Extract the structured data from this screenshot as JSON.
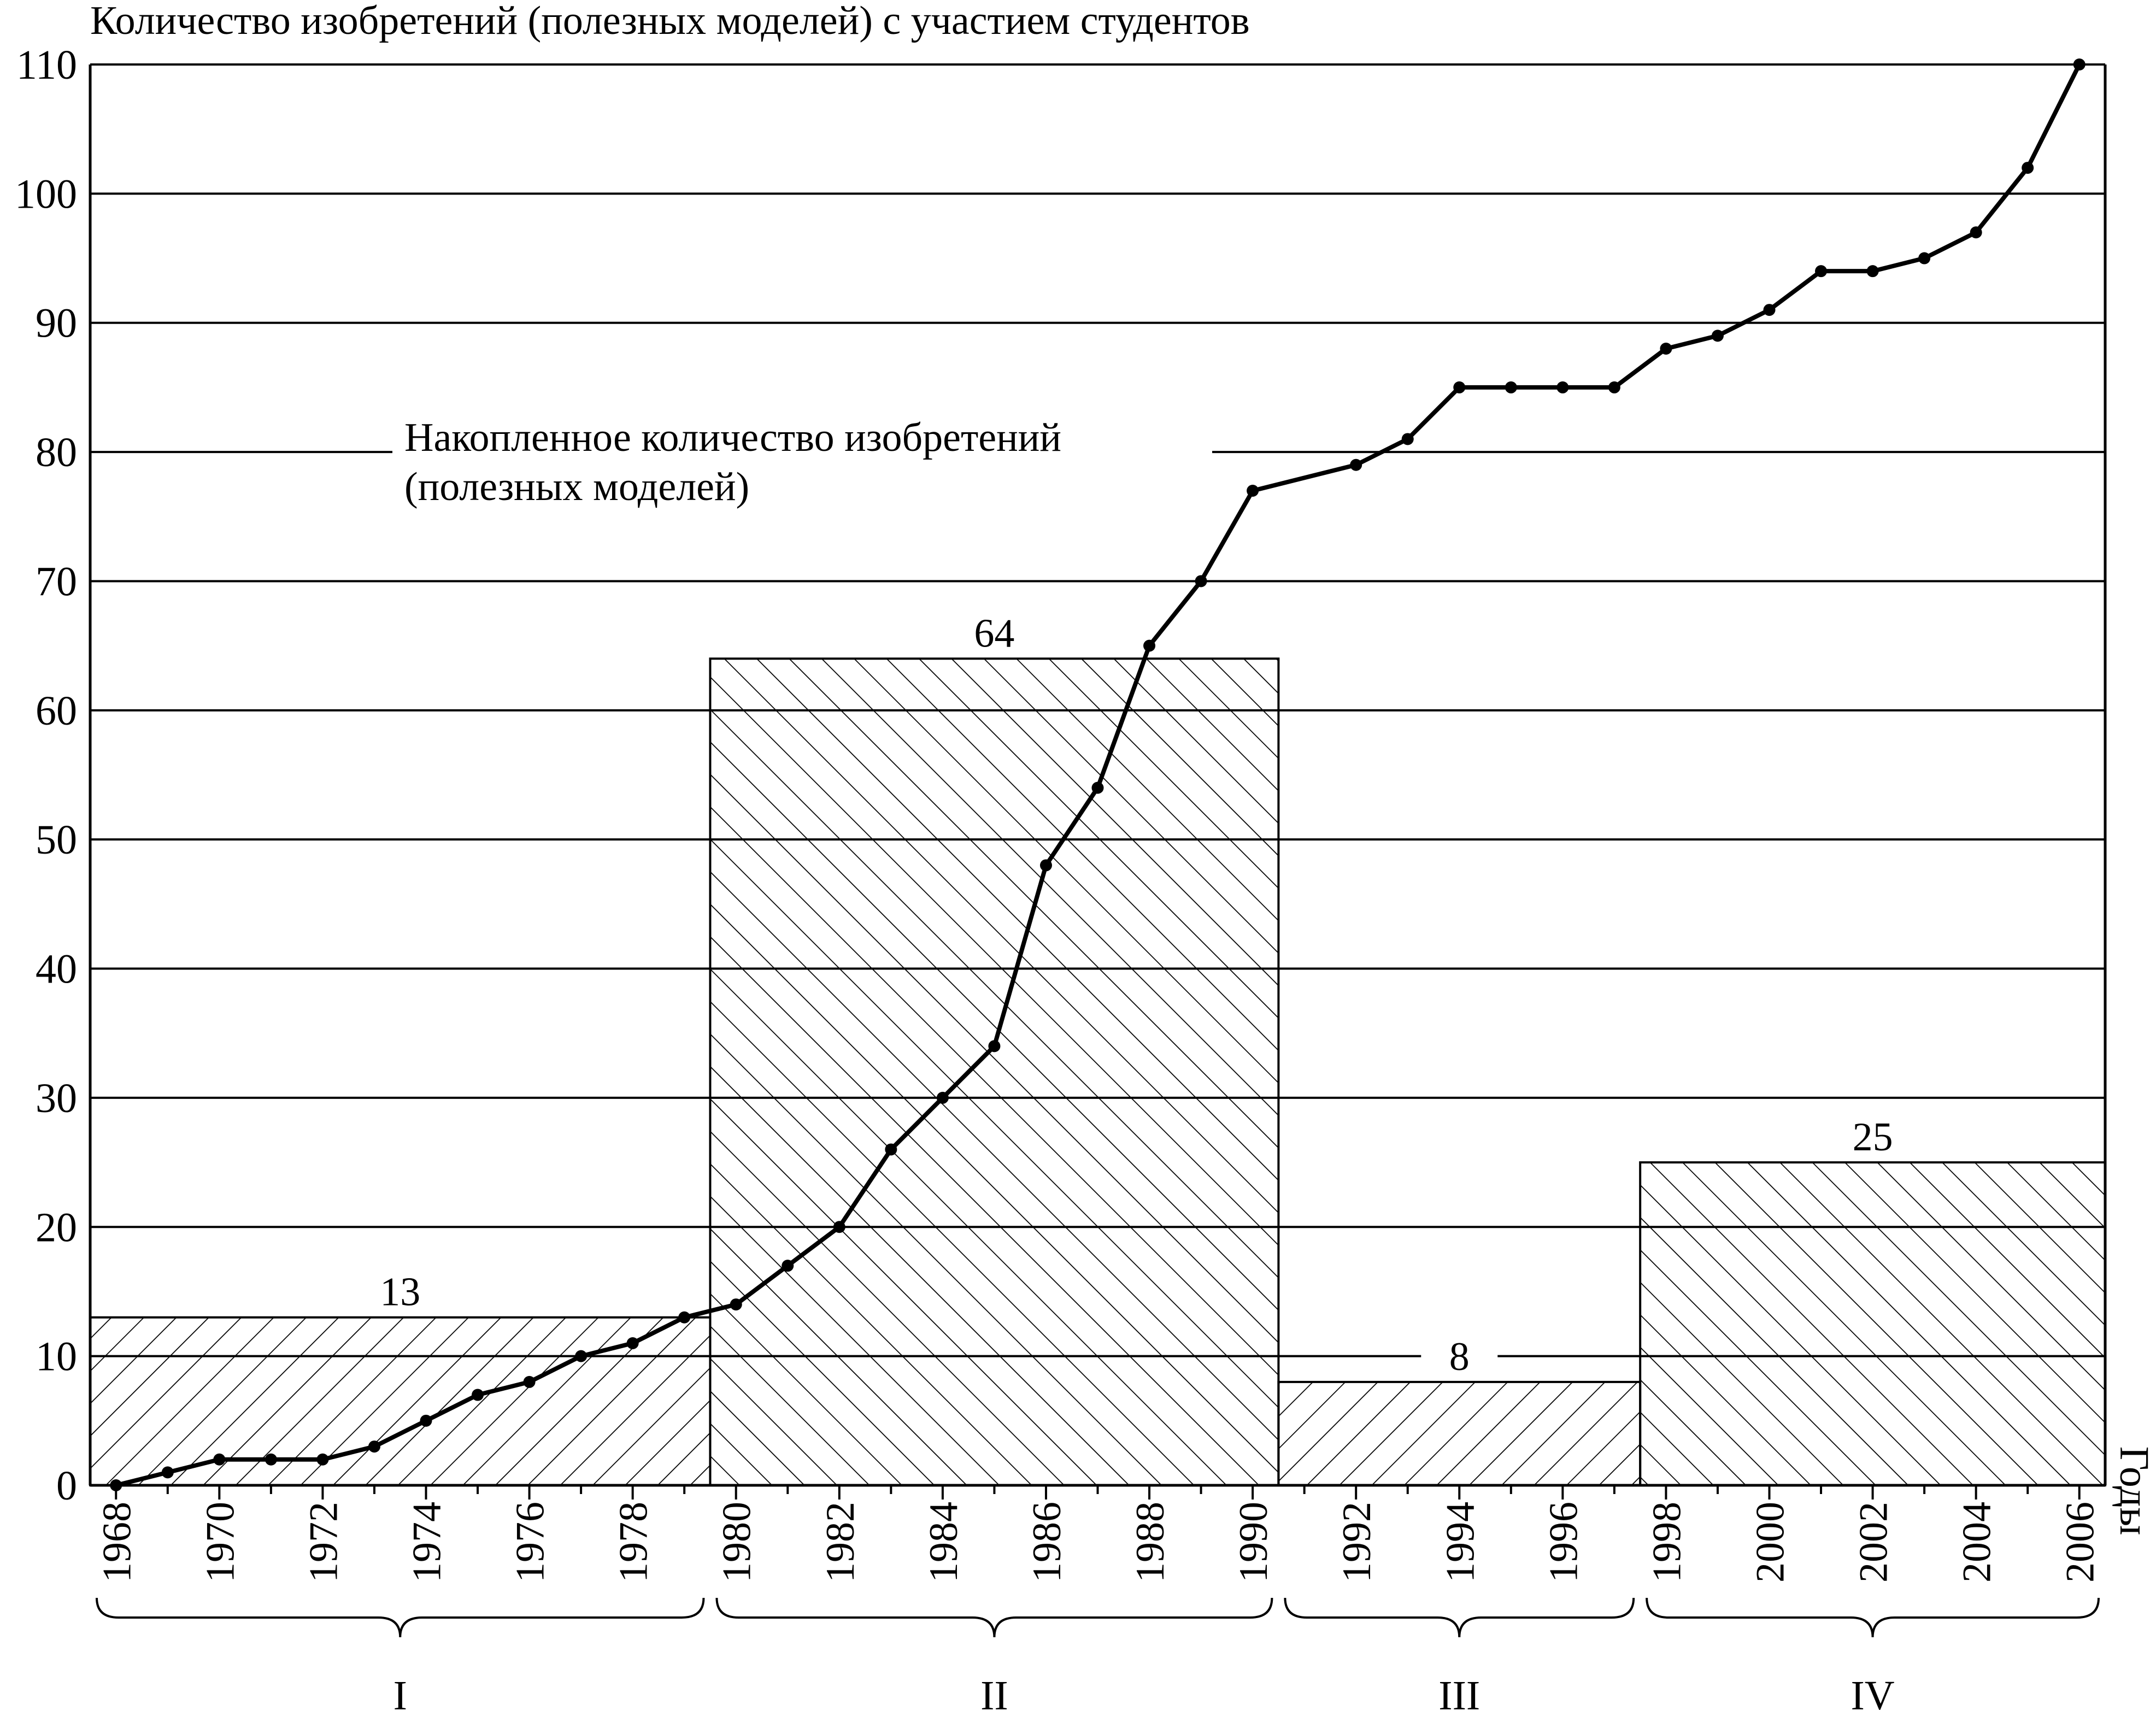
{
  "chart_data": {
    "type": "bar+line",
    "title": "Количество изобретений (полезных моделей) с участием студентов",
    "xlabel": "Годы",
    "ylim": [
      0,
      110
    ],
    "yticks": [
      0,
      10,
      20,
      30,
      40,
      50,
      60,
      70,
      80,
      90,
      100,
      110
    ],
    "xticks": [
      "1968",
      "1970",
      "1972",
      "1974",
      "1976",
      "1978",
      "1980",
      "1982",
      "1984",
      "1986",
      "1988",
      "1990",
      "1992",
      "1994",
      "1996",
      "1998",
      "2000",
      "2002",
      "2004",
      "2006"
    ],
    "grid": true,
    "line_series": {
      "name": "Накопленное количество изобретений (полезных моделей)",
      "x": [
        1968,
        1969,
        1970,
        1971,
        1972,
        1973,
        1974,
        1975,
        1976,
        1977,
        1978,
        1979,
        1980,
        1981,
        1982,
        1983,
        1984,
        1985,
        1986,
        1987,
        1988,
        1989,
        1990,
        1992,
        1993,
        1994,
        1995,
        1996,
        1997,
        1998,
        1999,
        2000,
        2001,
        2002,
        2003,
        2004,
        2005,
        2006
      ],
      "y": [
        0,
        1,
        2,
        2,
        2,
        3,
        5,
        7,
        8,
        10,
        11,
        13,
        14,
        17,
        20,
        26,
        30,
        34,
        48,
        54,
        65,
        70,
        77,
        79,
        81,
        85,
        85,
        85,
        85,
        88,
        89,
        91,
        94,
        94,
        95,
        97,
        102,
        110
      ]
    },
    "periods": [
      {
        "label": "I",
        "x_start": 1967.5,
        "x_end": 1979.5,
        "value": 13,
        "value_label": "13",
        "hatch": "forward"
      },
      {
        "label": "II",
        "x_start": 1979.5,
        "x_end": 1990.5,
        "value": 64,
        "value_label": "64",
        "hatch": "backward"
      },
      {
        "label": "III",
        "x_start": 1990.5,
        "x_end": 1997.5,
        "value": 8,
        "value_label": "8",
        "hatch": "forward"
      },
      {
        "label": "IV",
        "x_start": 1997.5,
        "x_end": 2006.5,
        "value": 25,
        "value_label": "25",
        "hatch": "backward"
      }
    ],
    "annotation_lines": [
      "Накопленное количество изобретений",
      "(полезных моделей)"
    ]
  }
}
